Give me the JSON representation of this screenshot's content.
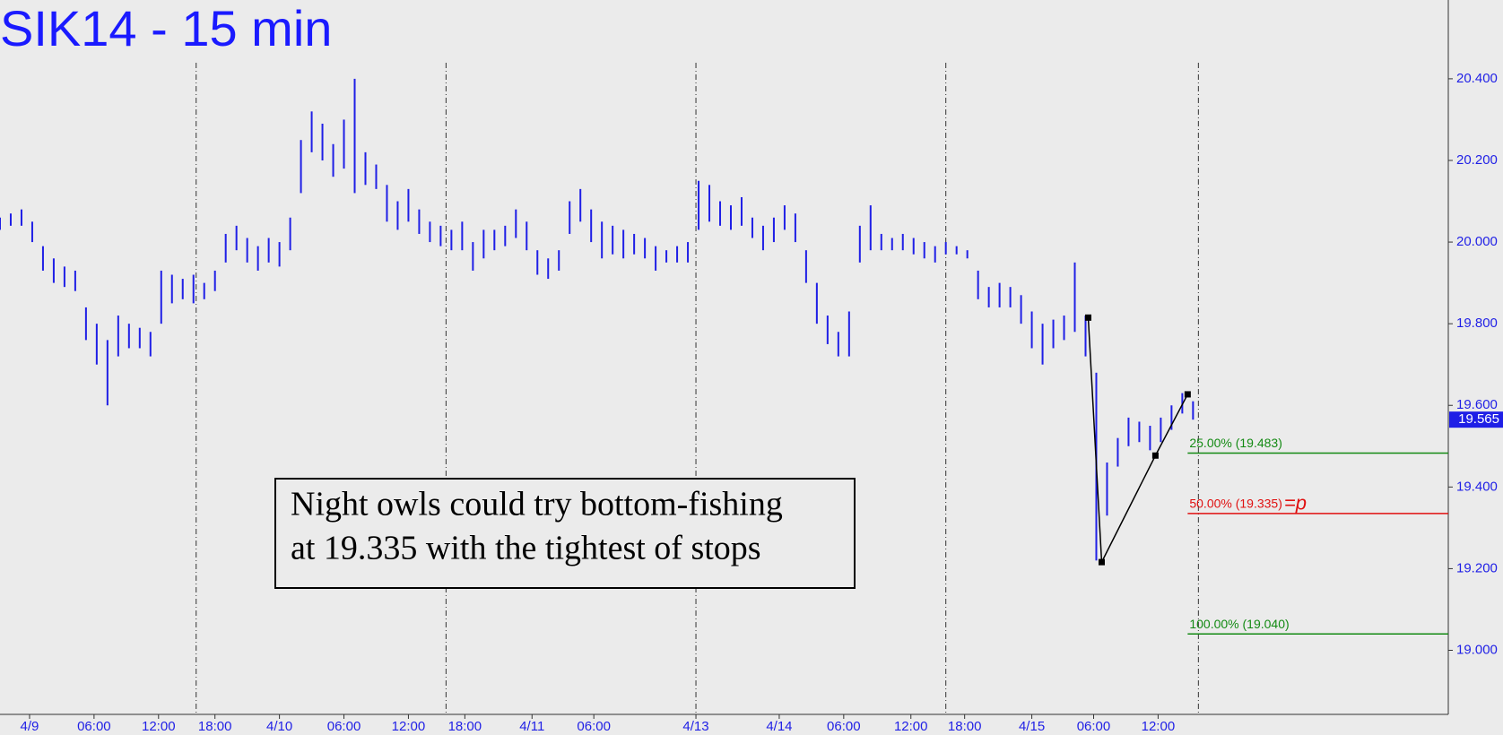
{
  "chart_data": {
    "type": "ohlc",
    "title": "SIK14 - 15 min",
    "annotation": [
      "Night owls could try bottom-fishing",
      "at 19.335 with the tightest of stops"
    ],
    "bars": {
      "color": "#1f1fe6",
      "x": [
        0,
        4,
        8,
        12,
        16,
        20,
        24,
        28,
        32,
        36,
        40,
        44,
        48,
        52,
        56,
        60,
        64,
        68,
        72,
        76,
        80,
        84,
        88,
        92,
        96,
        100,
        104,
        108,
        112,
        116,
        120,
        124,
        128,
        132,
        136,
        140,
        144,
        148,
        152,
        156,
        160,
        164,
        168,
        172,
        176,
        180,
        184,
        188,
        192,
        196,
        200,
        204,
        208,
        212,
        216,
        220,
        224,
        228,
        232,
        236,
        240,
        244,
        248,
        252,
        256,
        260,
        264,
        268,
        272,
        276,
        280,
        284,
        288,
        292,
        296,
        300,
        304,
        308,
        312,
        316,
        320,
        324,
        328,
        332,
        336,
        340,
        344,
        348,
        352,
        356,
        360,
        364,
        368,
        372,
        376,
        380,
        384,
        388,
        392,
        396,
        400,
        404,
        408,
        412,
        416,
        420,
        424,
        428,
        432,
        436,
        440,
        444
      ],
      "high": [
        20.06,
        20.07,
        20.08,
        20.05,
        19.99,
        19.96,
        19.94,
        19.93,
        19.84,
        19.8,
        19.76,
        19.82,
        19.8,
        19.79,
        19.78,
        19.93,
        19.92,
        19.91,
        19.92,
        19.9,
        19.93,
        20.02,
        20.04,
        20.01,
        19.99,
        20.01,
        20.0,
        20.06,
        20.25,
        20.32,
        20.29,
        20.24,
        20.3,
        20.4,
        20.22,
        20.19,
        20.14,
        20.1,
        20.13,
        20.08,
        20.05,
        20.04,
        20.03,
        20.05,
        20.0,
        20.03,
        20.03,
        20.04,
        20.08,
        20.05,
        19.98,
        19.96,
        19.98,
        20.1,
        20.13,
        20.08,
        20.05,
        20.04,
        20.03,
        20.02,
        20.01,
        19.99,
        19.98,
        19.99,
        20.0,
        20.15,
        20.14,
        20.1,
        20.09,
        20.11,
        20.06,
        20.04,
        20.06,
        20.09,
        20.07,
        19.98,
        19.9,
        19.82,
        19.78,
        19.83,
        20.04,
        20.09,
        20.02,
        20.01,
        20.02,
        20.01,
        20.0,
        19.99,
        20.0,
        19.99,
        19.98,
        19.93,
        19.89,
        19.9,
        19.89,
        19.87,
        19.83,
        19.8,
        19.81,
        19.82,
        19.95,
        19.82,
        19.68,
        19.46,
        19.52,
        19.57,
        19.56,
        19.55,
        19.57,
        19.6,
        19.63,
        19.61
      ],
      "low": [
        20.03,
        20.04,
        20.04,
        20.0,
        19.93,
        19.9,
        19.89,
        19.88,
        19.76,
        19.7,
        19.6,
        19.72,
        19.74,
        19.74,
        19.72,
        19.8,
        19.85,
        19.86,
        19.85,
        19.86,
        19.88,
        19.95,
        19.98,
        19.95,
        19.93,
        19.95,
        19.94,
        19.98,
        20.12,
        20.22,
        20.2,
        20.16,
        20.18,
        20.12,
        20.14,
        20.13,
        20.05,
        20.03,
        20.05,
        20.02,
        20.0,
        19.99,
        19.98,
        19.98,
        19.93,
        19.96,
        19.98,
        19.99,
        20.01,
        19.98,
        19.92,
        19.91,
        19.93,
        20.02,
        20.05,
        20.0,
        19.96,
        19.97,
        19.96,
        19.97,
        19.96,
        19.93,
        19.95,
        19.95,
        19.95,
        20.03,
        20.05,
        20.04,
        20.03,
        20.04,
        20.01,
        19.98,
        20.0,
        20.03,
        20.0,
        19.9,
        19.8,
        19.75,
        19.72,
        19.72,
        19.95,
        19.98,
        19.98,
        19.98,
        19.98,
        19.97,
        19.96,
        19.95,
        19.97,
        19.97,
        19.96,
        19.86,
        19.84,
        19.84,
        19.84,
        19.8,
        19.74,
        19.7,
        19.74,
        19.76,
        19.78,
        19.72,
        19.22,
        19.33,
        19.45,
        19.5,
        19.51,
        19.49,
        19.51,
        19.54,
        19.58,
        19.565
      ]
    },
    "pattern": {
      "color": "#000000",
      "x": [
        405,
        410,
        430,
        442
      ],
      "values": [
        19.815,
        19.216,
        19.477,
        19.627
      ]
    },
    "levels": [
      {
        "value": 19.483,
        "label": "25.00% (19.483)",
        "color": "#138a13"
      },
      {
        "value": 19.335,
        "label": "50.00% (19.335)",
        "suffix": "=p",
        "color": "#e01010"
      },
      {
        "value": 19.04,
        "label": "100.00% (19.040)",
        "color": "#138a13"
      }
    ],
    "last": {
      "value": 19.565,
      "label": "19.565"
    },
    "session_lines": [
      73,
      166,
      259,
      352,
      446
    ],
    "xlim": [
      0,
      539
    ],
    "xticks": [
      {
        "value": 11,
        "label": "4/9"
      },
      {
        "value": 35,
        "label": "06:00"
      },
      {
        "value": 59,
        "label": "12:00"
      },
      {
        "value": 80,
        "label": "18:00"
      },
      {
        "value": 104,
        "label": "4/10"
      },
      {
        "value": 128,
        "label": "06:00"
      },
      {
        "value": 152,
        "label": "12:00"
      },
      {
        "value": 173,
        "label": "18:00"
      },
      {
        "value": 198,
        "label": "4/11"
      },
      {
        "value": 221,
        "label": "06:00"
      },
      {
        "value": 259,
        "label": "4/13"
      },
      {
        "value": 290,
        "label": "4/14"
      },
      {
        "value": 314,
        "label": "06:00"
      },
      {
        "value": 339,
        "label": "12:00"
      },
      {
        "value": 359,
        "label": "18:00"
      },
      {
        "value": 384,
        "label": "4/15"
      },
      {
        "value": 407,
        "label": "06:00"
      },
      {
        "value": 431,
        "label": "12:00"
      }
    ],
    "ylim": [
      18.843,
      20.593
    ],
    "yticks": [
      {
        "value": 19.0,
        "label": "19.000"
      },
      {
        "value": 19.2,
        "label": "19.200"
      },
      {
        "value": 19.4,
        "label": "19.400"
      },
      {
        "value": 19.6,
        "label": "19.600"
      },
      {
        "value": 19.8,
        "label": "19.800"
      },
      {
        "value": 20.0,
        "label": "20.000"
      },
      {
        "value": 20.2,
        "label": "20.200"
      },
      {
        "value": 20.4,
        "label": "20.400"
      }
    ],
    "axis_color": "#1f1fe6"
  }
}
